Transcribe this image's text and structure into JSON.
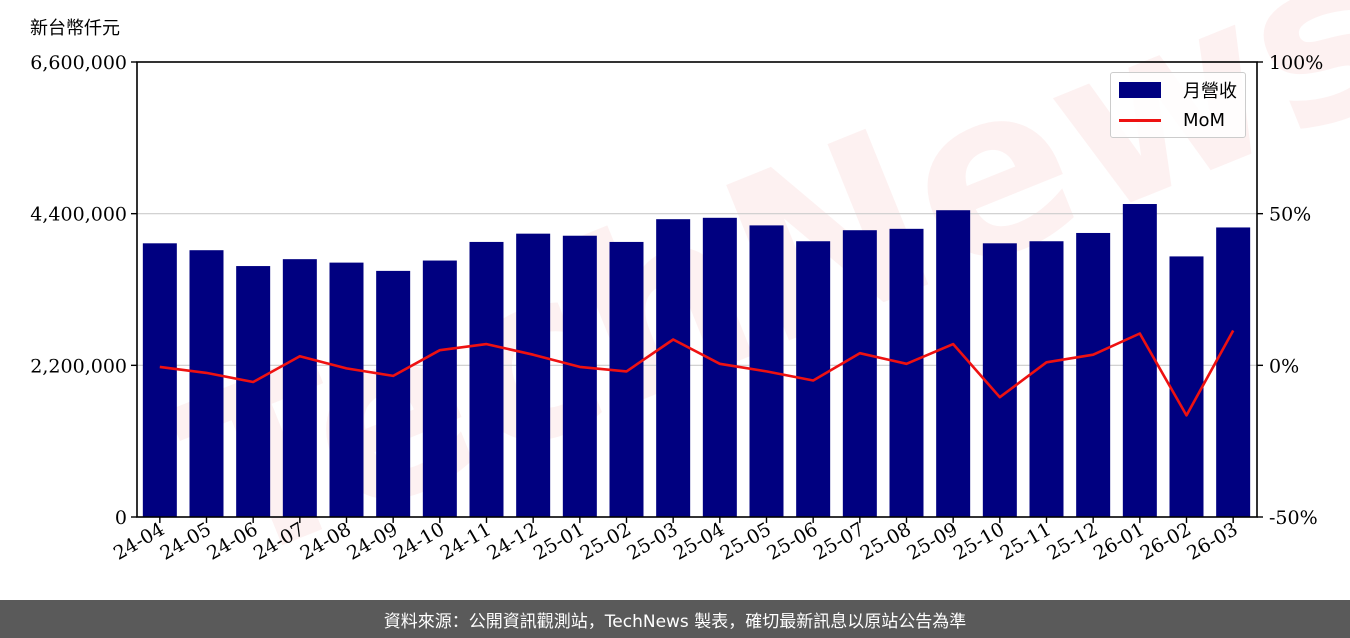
{
  "unit_label": "新台幣仟元",
  "footer_text": "資料來源：公開資訊觀測站，TechNews 製表，確切最新訊息以原站公告為準",
  "watermark_text": "TechNews",
  "legend": {
    "bar_label": "月營收",
    "line_label": "MoM"
  },
  "colors": {
    "bar": "#000080",
    "line": "#ee1111",
    "grid": "#cccccc",
    "footer_bg": "#5a5a5a"
  },
  "chart_data": {
    "type": "bar",
    "categories": [
      "24-04",
      "24-05",
      "24-06",
      "24-07",
      "24-08",
      "24-09",
      "24-10",
      "24-11",
      "24-12",
      "25-01",
      "25-02",
      "25-03",
      "25-04",
      "25-05",
      "25-06",
      "25-07",
      "25-08",
      "25-09",
      "25-10",
      "25-11",
      "25-12",
      "26-01",
      "26-02",
      "26-03"
    ],
    "series": [
      {
        "name": "月營收",
        "type": "bar",
        "axis": "left",
        "values": [
          3970000,
          3870000,
          3640000,
          3740000,
          3690000,
          3570000,
          3720000,
          3990000,
          4110000,
          4080000,
          3990000,
          4320000,
          4340000,
          4230000,
          4000000,
          4160000,
          4180000,
          4450000,
          3970000,
          4000000,
          4120000,
          4540000,
          3780000,
          4200000
        ]
      },
      {
        "name": "MoM",
        "type": "line",
        "axis": "right",
        "values": [
          -0.5,
          -2.5,
          -5.5,
          3.0,
          -1.0,
          -3.5,
          5.0,
          7.0,
          3.5,
          -0.5,
          -2.0,
          8.5,
          0.5,
          -2.0,
          -5.0,
          4.0,
          0.5,
          7.0,
          -10.5,
          1.0,
          3.5,
          10.5,
          -16.5,
          11.5
        ]
      }
    ],
    "y_left": {
      "ylim": [
        0,
        6600000
      ],
      "ticks": [
        0,
        2200000,
        4400000,
        6600000
      ],
      "tick_labels": [
        "0",
        "2,200,000",
        "4,400,000",
        "6,600,000"
      ]
    },
    "y_right": {
      "ylim": [
        -50,
        100
      ],
      "ticks": [
        -50,
        0,
        50,
        100
      ],
      "tick_labels": [
        "-50%",
        "0%",
        "50%",
        "100%"
      ]
    },
    "grid": "horizontal",
    "legend_position": "top-right"
  }
}
